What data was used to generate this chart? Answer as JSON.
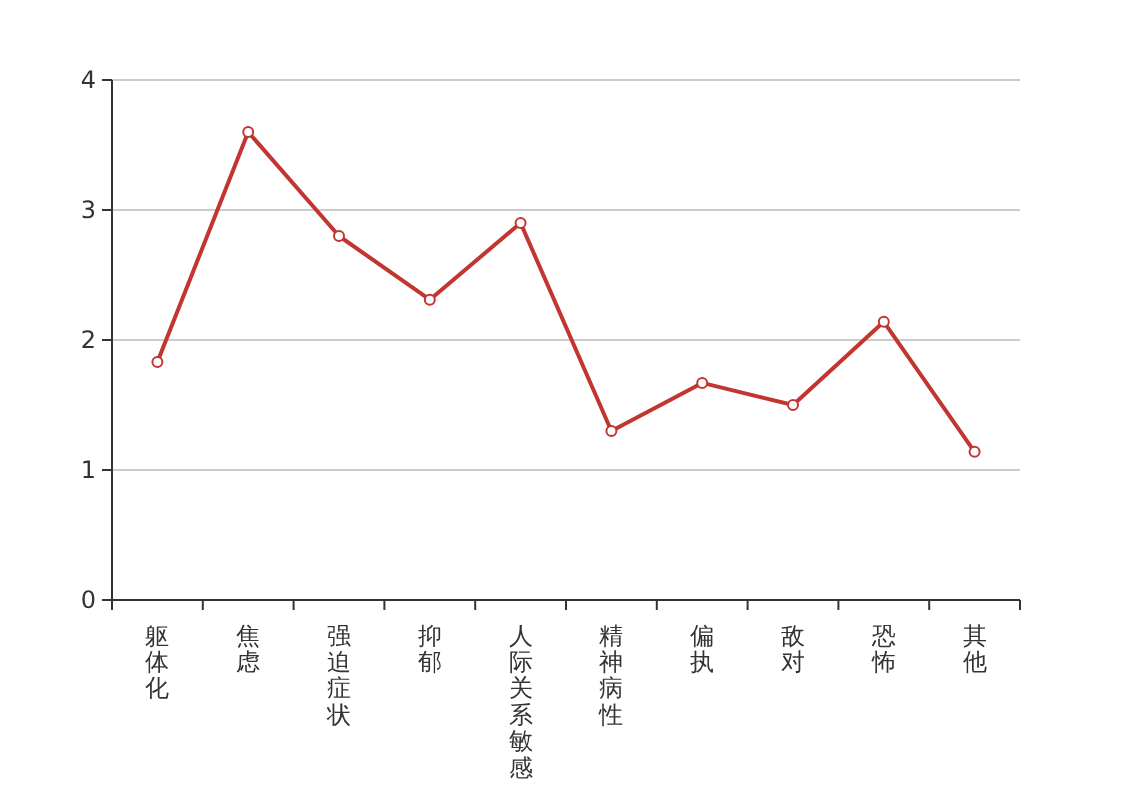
{
  "chart_data": {
    "type": "line",
    "categories": [
      "躯体化",
      "焦虑",
      "强迫症状",
      "抑郁",
      "人际关系敏感",
      "精神病性",
      "偏执",
      "敌对",
      "恐怖",
      "其他"
    ],
    "series": [
      {
        "color": "#c23531",
        "values": [
          1.83,
          3.6,
          2.8,
          2.31,
          2.9,
          1.3,
          1.67,
          1.5,
          2.14,
          1.14
        ]
      }
    ],
    "ylim": [
      0,
      4
    ],
    "yticks": [
      0,
      1,
      2,
      3,
      4
    ],
    "grid": "y",
    "marker": "circle",
    "line_style": "solid"
  }
}
